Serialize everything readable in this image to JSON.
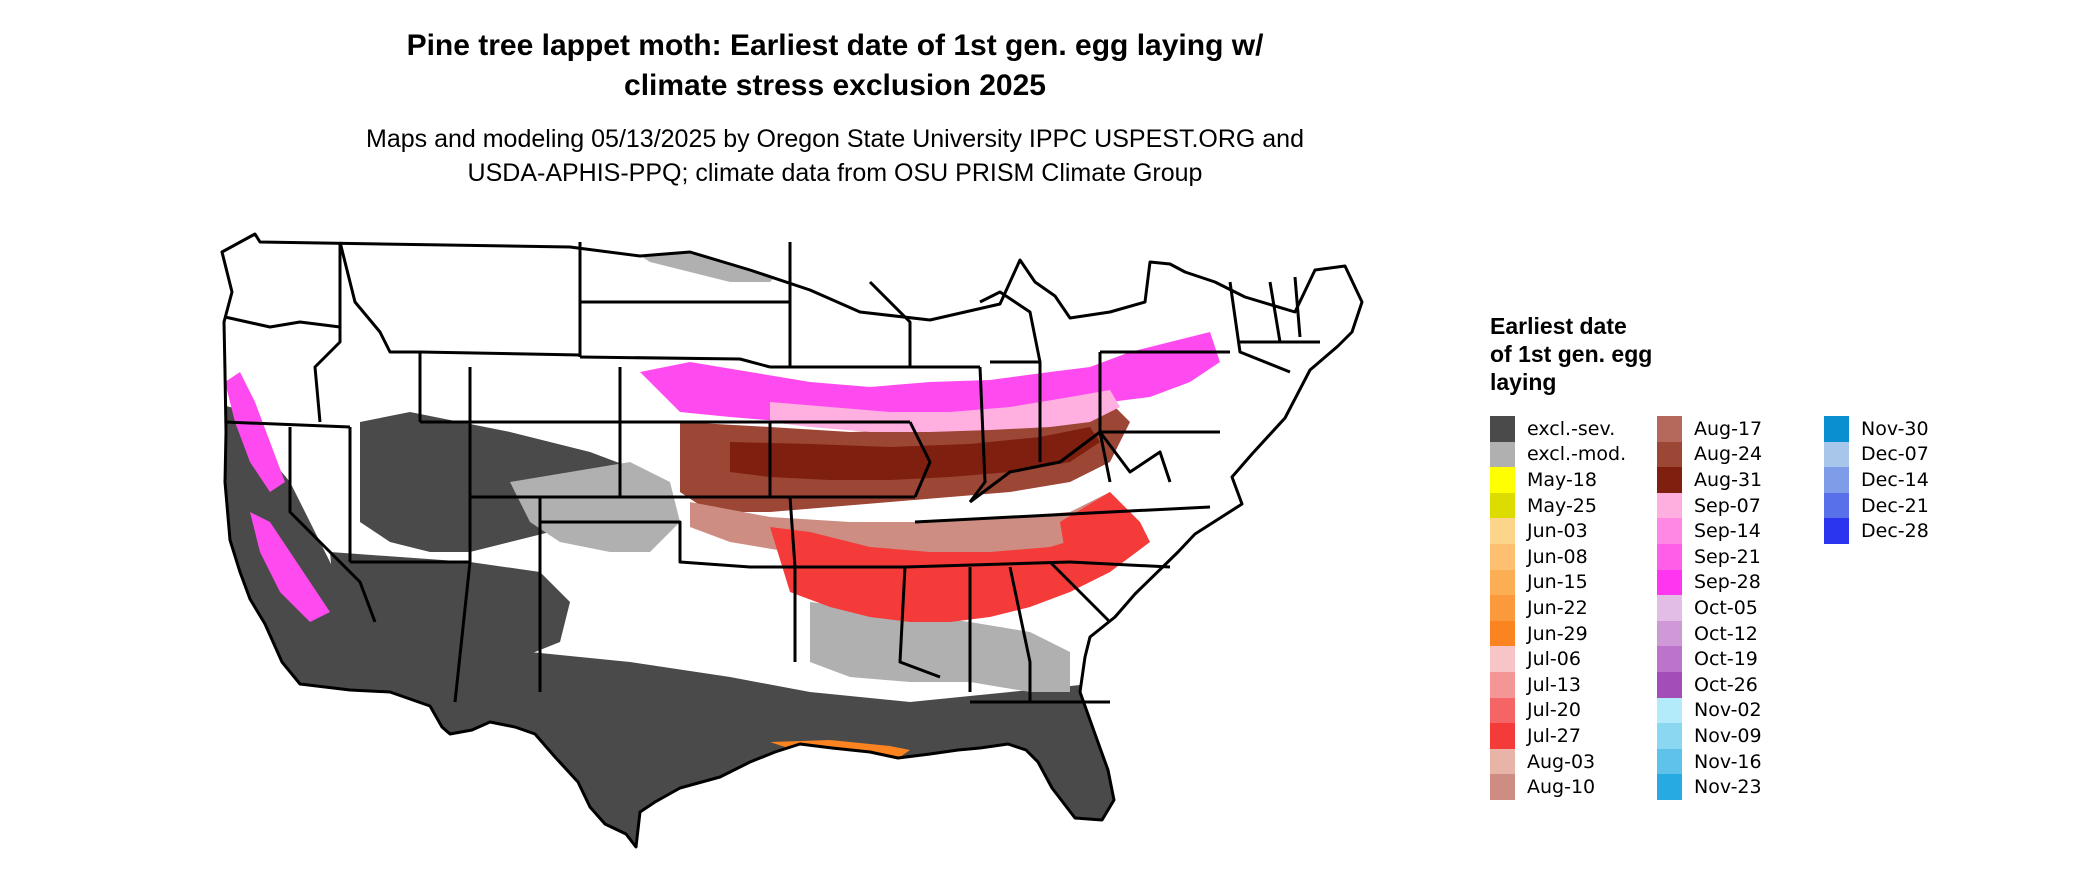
{
  "title": "Pine tree lappet moth: Earliest date of 1st gen. egg laying w/ climate stress exclusion 2025",
  "title_lines": [
    "Pine tree lappet moth: Earliest date of 1st gen. egg laying w/",
    "climate stress exclusion 2025"
  ],
  "subtitle_lines": [
    "Maps and modeling 05/13/2025 by Oregon State University IPPC USPEST.ORG and",
    "USDA-APHIS-PPQ; climate data from OSU PRISM Climate Group"
  ],
  "legend": {
    "title_lines": [
      "Earliest date",
      "of 1st gen. egg",
      "laying"
    ],
    "columns": [
      [
        {
          "label": "excl.-sev.",
          "color": "#4a4a4a"
        },
        {
          "label": "excl.-mod.",
          "color": "#b0b0b0"
        },
        {
          "label": "May-18",
          "color": "#ffff00"
        },
        {
          "label": "May-25",
          "color": "#dcdc00"
        },
        {
          "label": "Jun-03",
          "color": "#fdd58a"
        },
        {
          "label": "Jun-08",
          "color": "#fdc070"
        },
        {
          "label": "Jun-15",
          "color": "#fcae55"
        },
        {
          "label": "Jun-22",
          "color": "#fb9a3c"
        },
        {
          "label": "Jun-29",
          "color": "#fb8320"
        },
        {
          "label": "Jul-06",
          "color": "#f7c5c5"
        },
        {
          "label": "Jul-13",
          "color": "#f49696"
        },
        {
          "label": "Jul-20",
          "color": "#f56565"
        },
        {
          "label": "Jul-27",
          "color": "#f53a3a"
        },
        {
          "label": "Aug-03",
          "color": "#e8b4a8"
        },
        {
          "label": "Aug-10",
          "color": "#cd8d83"
        }
      ],
      [
        {
          "label": "Aug-17",
          "color": "#b5695c"
        },
        {
          "label": "Aug-24",
          "color": "#9c4636"
        },
        {
          "label": "Aug-31",
          "color": "#7f1f10"
        },
        {
          "label": "Sep-07",
          "color": "#ffaee0"
        },
        {
          "label": "Sep-14",
          "color": "#ff88e4"
        },
        {
          "label": "Sep-21",
          "color": "#ff5fe8"
        },
        {
          "label": "Sep-28",
          "color": "#ff35f0"
        },
        {
          "label": "Oct-05",
          "color": "#e2bde6"
        },
        {
          "label": "Oct-12",
          "color": "#cf99d7"
        },
        {
          "label": "Oct-19",
          "color": "#bb74c9"
        },
        {
          "label": "Oct-26",
          "color": "#a24db8"
        },
        {
          "label": "Nov-02",
          "color": "#b4ebfb"
        },
        {
          "label": "Nov-09",
          "color": "#8ad7f2"
        },
        {
          "label": "Nov-16",
          "color": "#5fc2ea"
        },
        {
          "label": "Nov-23",
          "color": "#27aae1"
        }
      ],
      [
        {
          "label": "Nov-30",
          "color": "#0a8fd0"
        },
        {
          "label": "Dec-07",
          "color": "#a7c6ea"
        },
        {
          "label": "Dec-14",
          "color": "#7e9ce8"
        },
        {
          "label": "Dec-21",
          "color": "#5870ea"
        },
        {
          "label": "Dec-28",
          "color": "#2b35f0"
        }
      ]
    ]
  },
  "map_colors": {
    "excl_sev": "#4a4a4a",
    "excl_mod": "#b0b0b0",
    "north": "#ffffff",
    "magenta": "#ff4af0",
    "pink": "#ffb0e0",
    "mauve": "#b570c8",
    "brown_dark": "#7f1f10",
    "brown": "#9c4636",
    "brown_mid": "#b5695c",
    "salmon": "#cd8d83",
    "red": "#f53a3a",
    "orange": "#fb8320",
    "border": "#000000"
  }
}
